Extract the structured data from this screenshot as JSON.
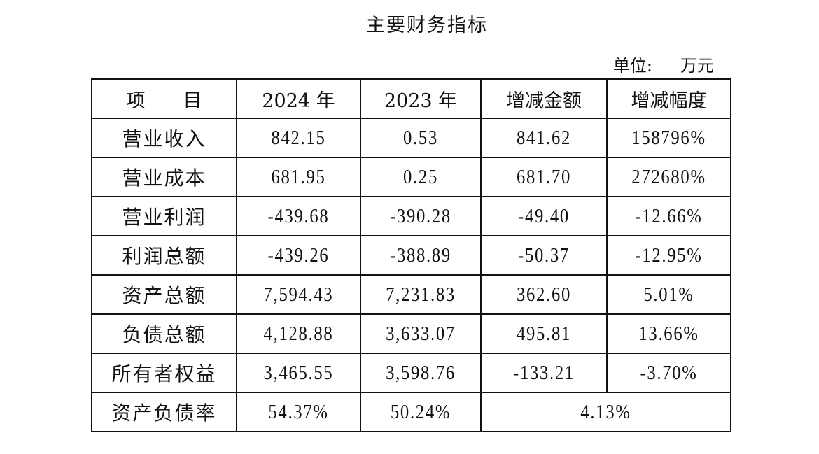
{
  "title": "主要财务指标",
  "unit": {
    "label": "单位:",
    "value": "万元"
  },
  "table": {
    "headers": [
      "项　　目",
      "2024 年",
      "2023 年",
      "增减金额",
      "增减幅度"
    ],
    "rows": [
      [
        "营业收入",
        "842.15",
        "0.53",
        "841.62",
        "158796%"
      ],
      [
        "营业成本",
        "681.95",
        "0.25",
        "681.70",
        "272680%"
      ],
      [
        "营业利润",
        "-439.68",
        "-390.28",
        "-49.40",
        "-12.66%"
      ],
      [
        "利润总额",
        "-439.26",
        "-388.89",
        "-50.37",
        "-12.95%"
      ],
      [
        "资产总额",
        "7,594.43",
        "7,231.83",
        "362.60",
        "5.01%"
      ],
      [
        "负债总额",
        "4,128.88",
        "3,633.07",
        "495.81",
        "13.66%"
      ],
      [
        "所有者权益",
        "3,465.55",
        "3,598.76",
        "-133.21",
        "-3.70%"
      ]
    ],
    "last_row": [
      "资产负债率",
      "54.37%",
      "50.24%",
      "4.13%"
    ]
  }
}
